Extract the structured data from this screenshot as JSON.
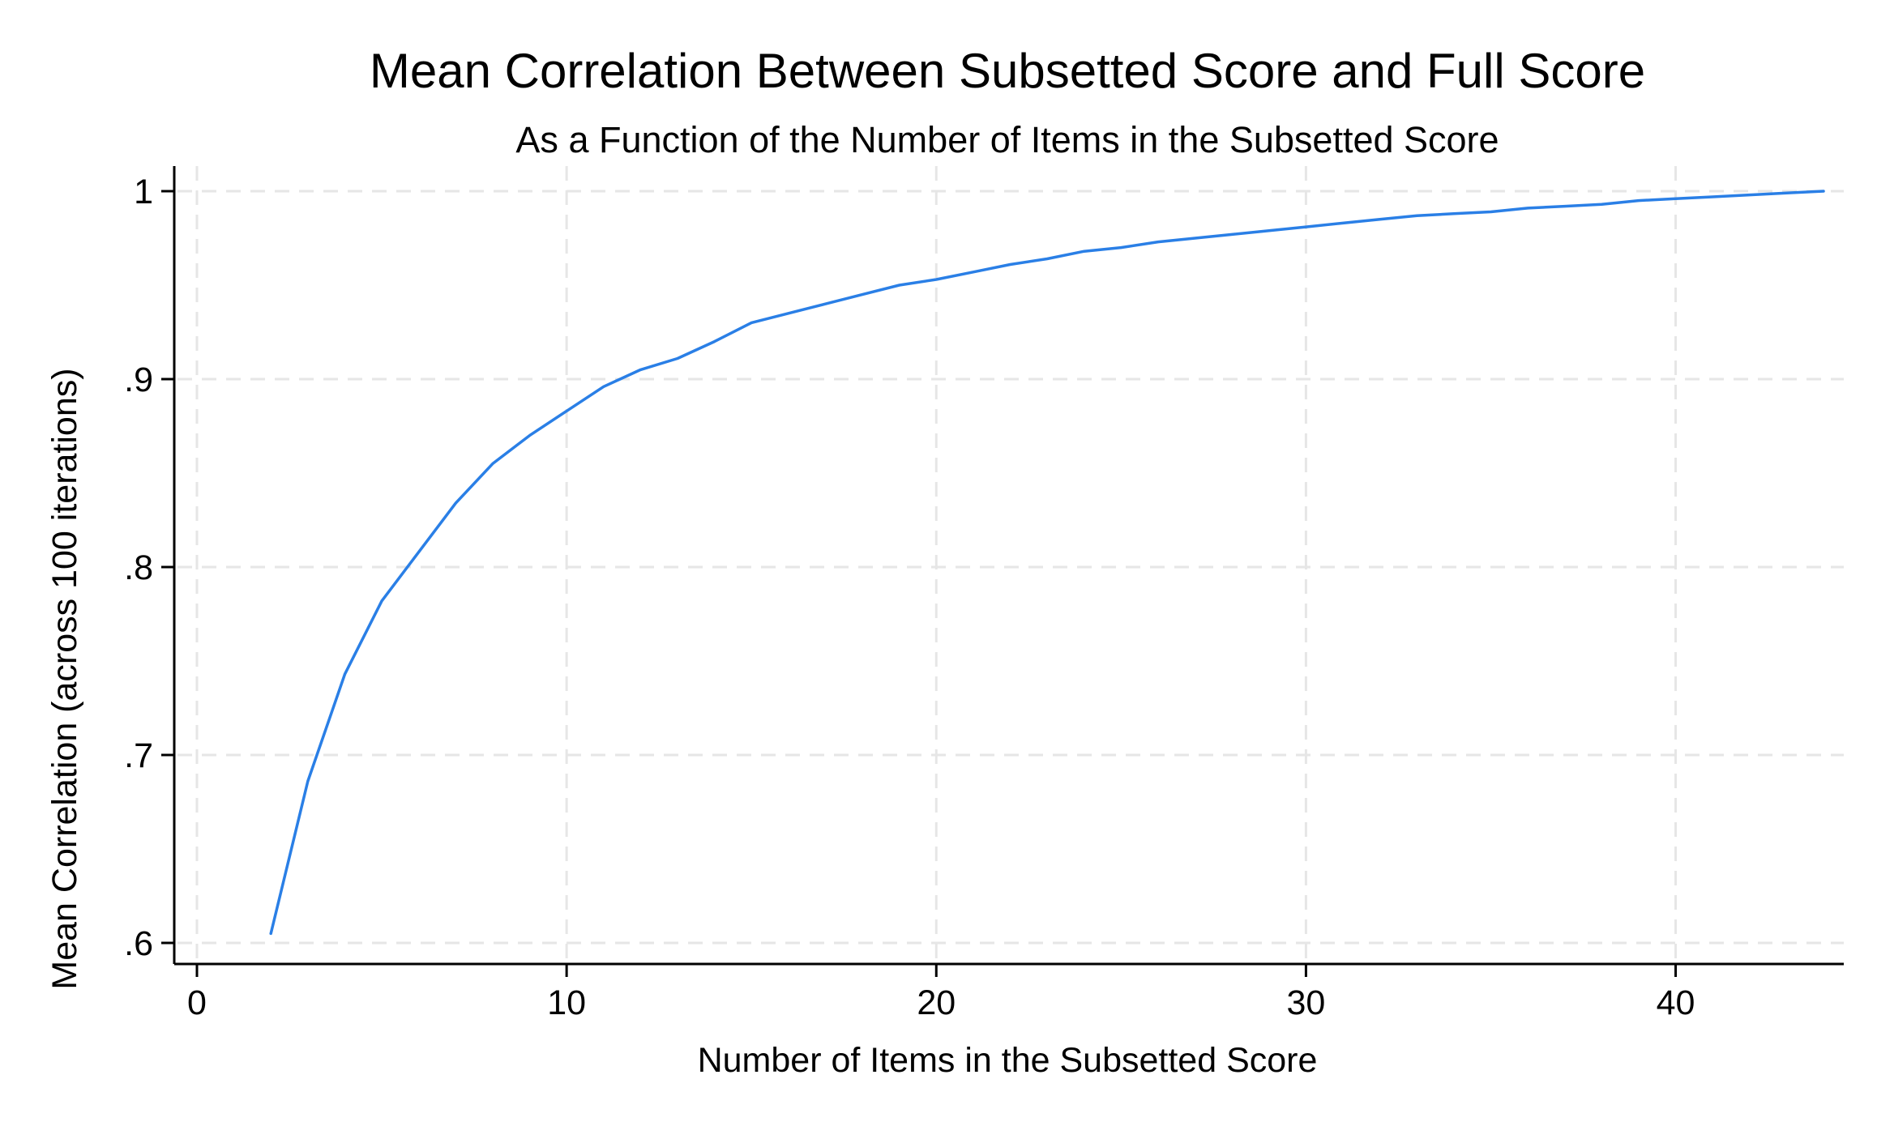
{
  "chart_data": {
    "type": "line",
    "title": "Mean Correlation Between Subsetted Score and Full Score",
    "subtitle": "As a Function of the Number of Items in the Subsetted Score",
    "xlabel": "Number of Items in the Subsetted Score",
    "ylabel": "Mean Correlation (across 100 iterations)",
    "xlim": [
      0,
      44
    ],
    "ylim": [
      0.6,
      1.0
    ],
    "x_ticks": [
      0,
      10,
      20,
      30,
      40
    ],
    "x_tick_labels": [
      "0",
      "10",
      "20",
      "30",
      "40"
    ],
    "y_ticks": [
      0.6,
      0.7,
      0.8,
      0.9,
      1.0
    ],
    "y_tick_labels": [
      ".6",
      ".7",
      ".8",
      ".9",
      "1"
    ],
    "grid": true,
    "series": [
      {
        "color": "#2a7fe6",
        "x": [
          2,
          3,
          4,
          5,
          6,
          7,
          8,
          9,
          10,
          11,
          12,
          13,
          14,
          15,
          16,
          17,
          18,
          19,
          20,
          21,
          22,
          23,
          24,
          25,
          26,
          27,
          28,
          29,
          30,
          31,
          32,
          33,
          34,
          35,
          36,
          37,
          38,
          39,
          40,
          41,
          42,
          43,
          44
        ],
        "y": [
          0.605,
          0.686,
          0.743,
          0.782,
          0.808,
          0.834,
          0.855,
          0.87,
          0.883,
          0.896,
          0.905,
          0.911,
          0.92,
          0.93,
          0.935,
          0.94,
          0.945,
          0.95,
          0.953,
          0.957,
          0.961,
          0.964,
          0.968,
          0.97,
          0.973,
          0.975,
          0.977,
          0.979,
          0.981,
          0.983,
          0.985,
          0.987,
          0.988,
          0.989,
          0.991,
          0.992,
          0.993,
          0.995,
          0.996,
          0.997,
          0.998,
          0.999,
          1.0
        ]
      }
    ]
  }
}
